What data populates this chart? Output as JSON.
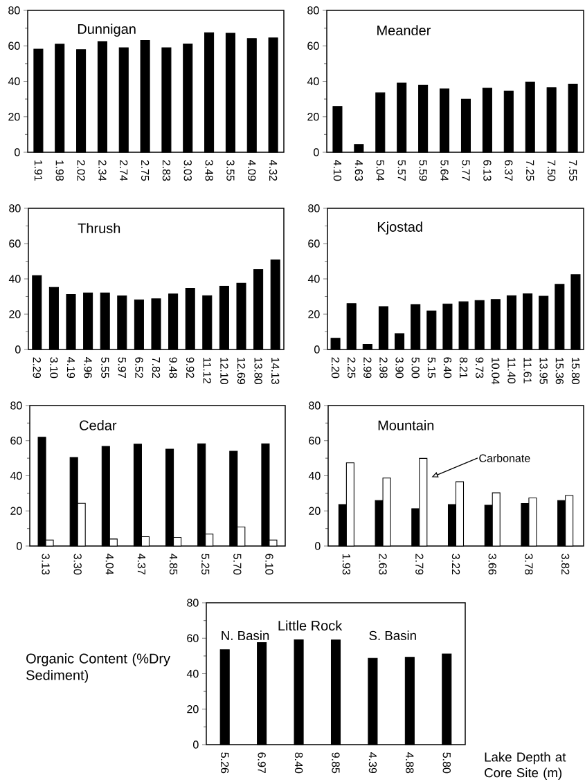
{
  "chart_data": [
    {
      "type": "bar",
      "title": "Dunnigan",
      "categories": [
        "1.91",
        "1.98",
        "2.02",
        "2.34",
        "2.74",
        "2.75",
        "2.83",
        "3.03",
        "3.48",
        "3.55",
        "4.09",
        "4.32"
      ],
      "series": [
        {
          "color": "#000000",
          "values": [
            58.1,
            61,
            57.8,
            62.4,
            58.9,
            63,
            58.9,
            61.1,
            67.4,
            67.1,
            64.1,
            64.5
          ]
        }
      ],
      "ylim": [
        0,
        80
      ],
      "yticks": [
        0,
        20,
        40,
        60,
        80
      ]
    },
    {
      "type": "bar",
      "title": "Meander",
      "categories": [
        "4.10",
        "4.63",
        "5.04",
        "5.57",
        "5.59",
        "5.64",
        "5.77",
        "6.13",
        "6.37",
        "7.25",
        "7.50",
        "7.55"
      ],
      "series": [
        {
          "color": "#000000",
          "values": [
            25.8,
            4.4,
            33.5,
            39,
            37.7,
            35.8,
            29.9,
            36.2,
            34.5,
            39.6,
            36.4,
            38.4
          ]
        }
      ],
      "ylim": [
        0,
        80
      ],
      "yticks": [
        0,
        20,
        40,
        60,
        80
      ]
    },
    {
      "type": "bar",
      "title": "Thrush",
      "categories": [
        "2.29",
        "3.10",
        "4.19",
        "4.96",
        "5.55",
        "5.97",
        "6.52",
        "7.82",
        "9.48",
        "9.92",
        "11.12",
        "12.10",
        "12.69",
        "13.80",
        "14.13"
      ],
      "series": [
        {
          "color": "#000000",
          "values": [
            41.8,
            35.2,
            31.2,
            32,
            32,
            30.4,
            28.1,
            28.7,
            31.5,
            34.7,
            30.5,
            35.9,
            37.5,
            45.3,
            50.8
          ]
        }
      ],
      "ylim": [
        0,
        80
      ],
      "yticks": [
        0,
        20,
        40,
        60,
        80
      ]
    },
    {
      "type": "bar",
      "title": "Kjostad",
      "categories": [
        "2.20",
        "2.25",
        "2.99",
        "2.98",
        "3.90",
        "5.00",
        "5.15",
        "6.40",
        "8.21",
        "9.73",
        "10.04",
        "11.40",
        "11.61",
        "13.95",
        "15.36",
        "15.80"
      ],
      "series": [
        {
          "color": "#000000",
          "values": [
            6.4,
            26,
            2.9,
            24.3,
            9,
            25.5,
            21.8,
            25.8,
            27,
            27.7,
            28.3,
            30.5,
            31.6,
            30.2,
            36.9,
            42.4
          ]
        }
      ],
      "ylim": [
        0,
        80
      ],
      "yticks": [
        0,
        20,
        40,
        60,
        80
      ]
    },
    {
      "type": "bar",
      "title": "Cedar",
      "categories": [
        "3.13",
        "3.30",
        "4.04",
        "4.37",
        "4.85",
        "5.25",
        "5.70",
        "6.10"
      ],
      "series": [
        {
          "color": "#000000",
          "values": [
            62,
            50.4,
            56.7,
            58,
            55.2,
            58.2,
            54,
            58.2
          ]
        },
        {
          "color": "#ffffff",
          "values": [
            3.4,
            24.3,
            4,
            5.3,
            4.9,
            6.8,
            10.8,
            3.4
          ]
        }
      ],
      "ylim": [
        0,
        80
      ],
      "yticks": [
        0,
        20,
        40,
        60,
        80
      ]
    },
    {
      "type": "bar",
      "title": "Mountain",
      "categories": [
        "1.93",
        "2.63",
        "2.79",
        "3.22",
        "3.66",
        "3.78",
        "3.82"
      ],
      "series": [
        {
          "color": "#000000",
          "values": [
            23.6,
            25.9,
            21.3,
            23.6,
            23.2,
            24.2,
            25.9
          ]
        },
        {
          "color": "#ffffff",
          "values": [
            47.4,
            38.7,
            49.9,
            36.6,
            30.3,
            27.4,
            28.8
          ]
        }
      ],
      "ylim": [
        0,
        80
      ],
      "yticks": [
        0,
        20,
        40,
        60,
        80
      ],
      "annotations": [
        "Carbonate"
      ]
    },
    {
      "type": "bar",
      "title": "Little Rock",
      "categories": [
        "5.26",
        "6.97",
        "8.40",
        "9.85",
        "4.39",
        "4.88",
        "5.80"
      ],
      "series": [
        {
          "color": "#000000",
          "values": [
            53.5,
            57.5,
            59.1,
            59,
            48.7,
            49.3,
            51.1
          ]
        }
      ],
      "ylim": [
        0,
        80
      ],
      "yticks": [
        0,
        20,
        40,
        60,
        80
      ],
      "ylabel": "Organic Content (%Dry Sediment)",
      "xlabel": "Lake Depth at Core Site (m)",
      "annotations": [
        "N. Basin",
        "S. Basin"
      ]
    }
  ]
}
